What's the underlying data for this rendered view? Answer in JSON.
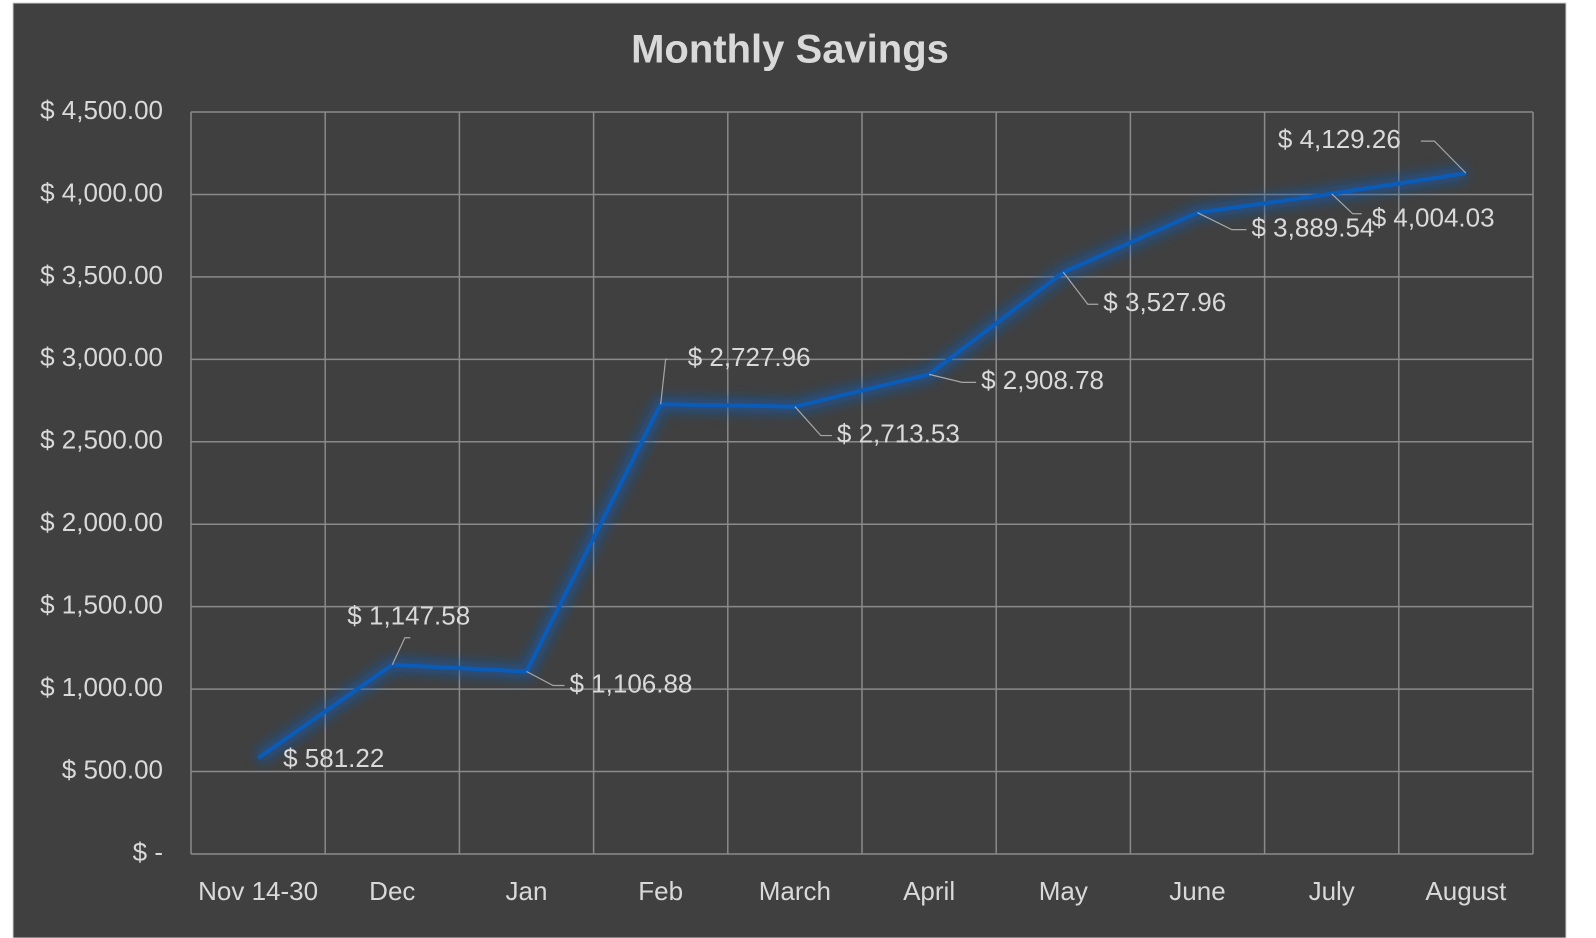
{
  "chart_data": {
    "type": "line",
    "title": "Monthly Savings",
    "categories": [
      "Nov 14-30",
      "Dec",
      "Jan",
      "Feb",
      "March",
      "April",
      "May",
      "June",
      "July",
      "August"
    ],
    "values": [
      581.22,
      1147.58,
      1106.88,
      2727.96,
      2713.53,
      2908.78,
      3527.96,
      3889.54,
      4004.03,
      4129.26
    ],
    "value_labels": [
      "$ 581.22",
      "$ 1,147.58",
      "$ 1,106.88",
      "$ 2,727.96",
      "$ 2,713.53",
      "$ 2,908.78",
      "$ 3,527.96",
      "$ 3,889.54",
      "$ 4,004.03",
      "$ 4,129.26"
    ],
    "color": "#0a5cb8",
    "ylim": [
      0,
      4500
    ],
    "yticks": [
      {
        "value": 0,
        "label": "$ -"
      },
      {
        "value": 500,
        "label": "$ 500.00"
      },
      {
        "value": 1000,
        "label": "$ 1,000.00"
      },
      {
        "value": 1500,
        "label": "$ 1,500.00"
      },
      {
        "value": 2000,
        "label": "$ 2,000.00"
      },
      {
        "value": 2500,
        "label": "$ 2,500.00"
      },
      {
        "value": 3000,
        "label": "$ 3,000.00"
      },
      {
        "value": 3500,
        "label": "$ 3,500.00"
      },
      {
        "value": 4000,
        "label": "$ 4,000.00"
      },
      {
        "value": 4500,
        "label": "$ 4,500.00"
      }
    ],
    "grid": true
  }
}
